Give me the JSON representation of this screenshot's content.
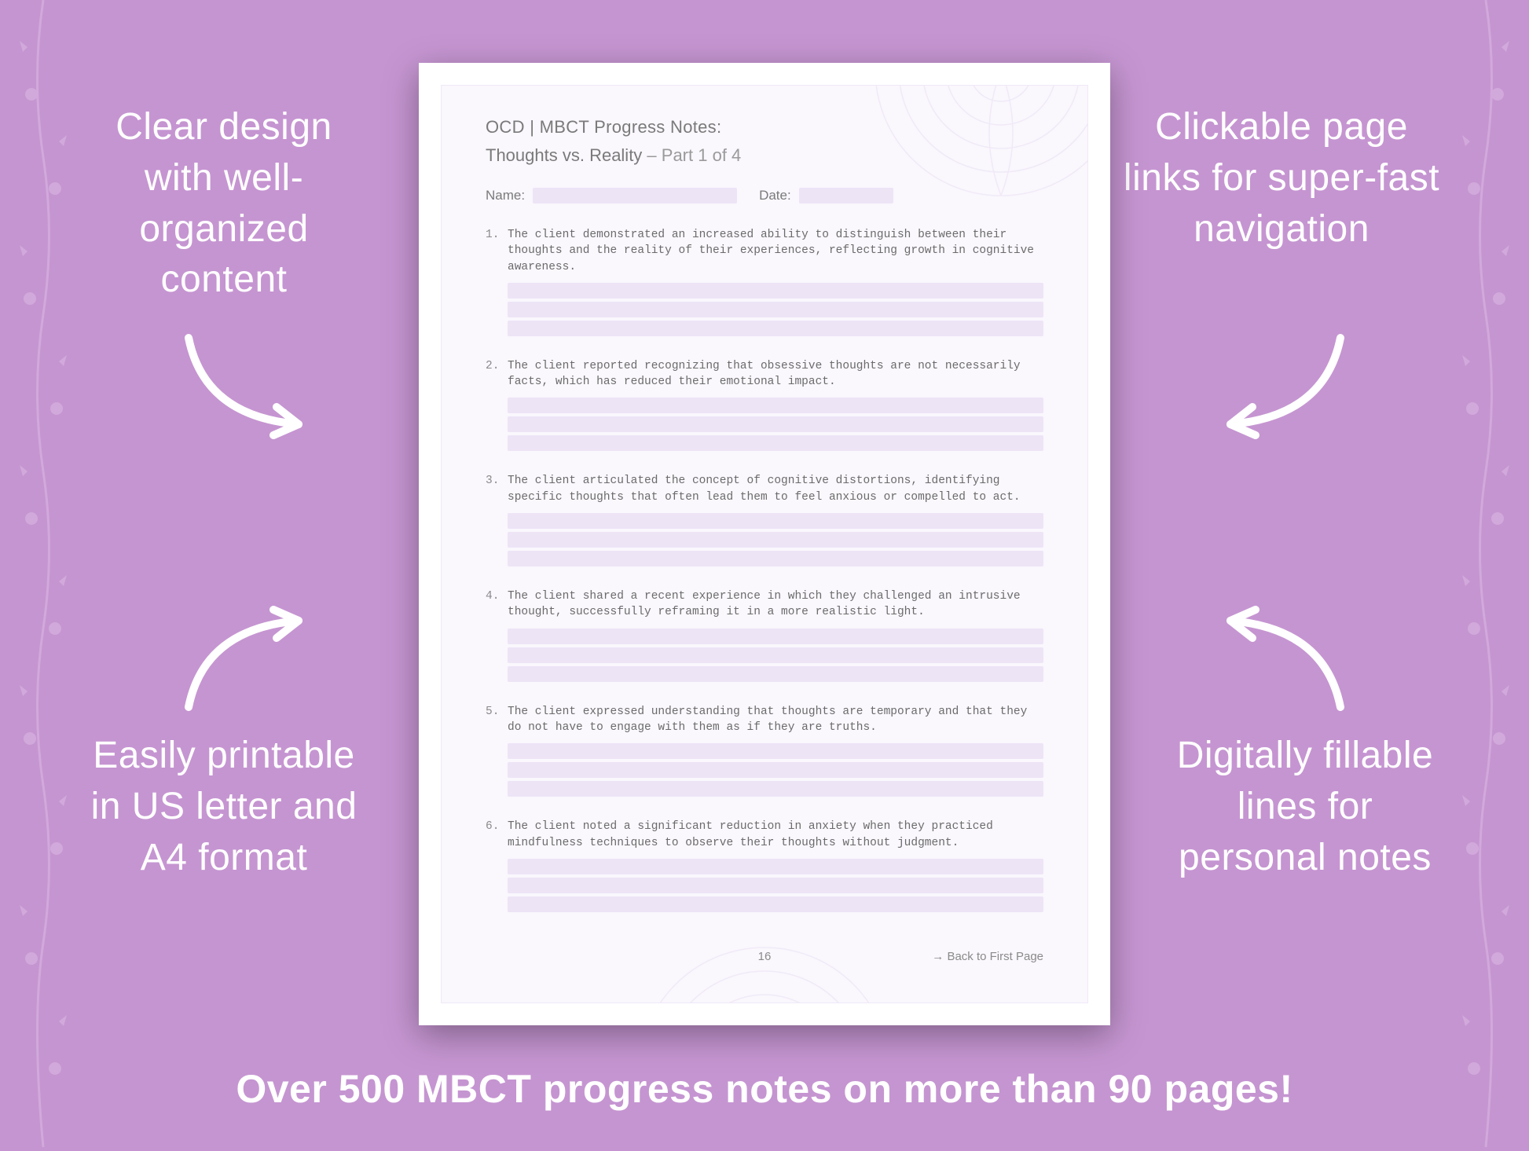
{
  "colors": {
    "background": "#c595d1",
    "callout_text": "#ffffff",
    "banner_text": "#ffffff",
    "page_bg": "#ffffff",
    "page_inner_bg": "#faf7fd",
    "fill_line": "#ede4f6",
    "doc_text": "#6b6b6b",
    "vine": "#e8d0ee"
  },
  "callouts": {
    "top_left": "Clear design with well-organized content",
    "top_right": "Clickable page links for super-fast navigation",
    "bottom_left": "Easily printable in US letter and A4 format",
    "bottom_right": "Digitally fillable lines for personal notes"
  },
  "banner": "Over 500 MBCT progress notes on more than 90 pages!",
  "document": {
    "title": "OCD | MBCT Progress Notes:",
    "subtitle_main": "Thoughts vs. Reality",
    "subtitle_part": "  – Part 1 of 4",
    "meta": {
      "name_label": "Name:",
      "date_label": "Date:"
    },
    "items": [
      "The client demonstrated an increased ability to distinguish between their thoughts and the reality of their experiences, reflecting growth in cognitive awareness.",
      "The client reported recognizing that obsessive thoughts are not necessarily facts, which has reduced their emotional impact.",
      "The client articulated the concept of cognitive distortions, identifying specific thoughts that often lead them to feel anxious or compelled to act.",
      "The client shared a recent experience in which they challenged an intrusive thought, successfully reframing it in a more realistic light.",
      "The client expressed understanding that thoughts are temporary and that they do not have to engage with them as if they are truths.",
      "The client noted a significant reduction in anxiety when they practiced mindfulness techniques to observe their thoughts without judgment."
    ],
    "page_number": "16",
    "back_link": "→ Back to First Page",
    "lines_per_item": 3
  },
  "typography": {
    "callout_fontsize": 48,
    "banner_fontsize": 50,
    "doc_title_fontsize": 22,
    "item_fontsize": 14.5
  }
}
